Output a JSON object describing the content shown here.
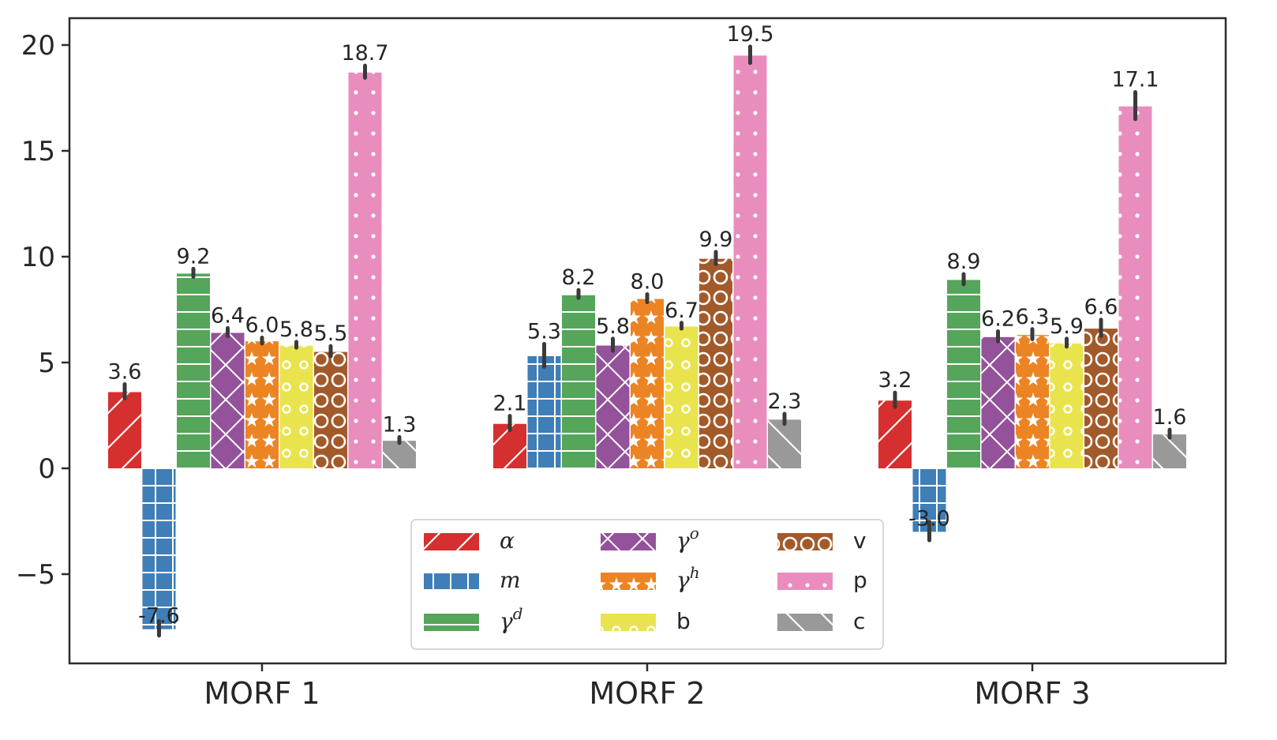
{
  "chart_data": {
    "type": "bar",
    "categories": [
      "MORF 1",
      "MORF 2",
      "MORF 3"
    ],
    "ylim": [
      -9.2,
      21.3
    ],
    "yticks": [
      -5,
      0,
      5,
      10,
      15,
      20
    ],
    "ytick_labels": [
      "−5",
      "0",
      "5",
      "10",
      "15",
      "20"
    ],
    "grid": false,
    "legend_position": "lower-center",
    "series": [
      {
        "name": "α",
        "super": "",
        "italic": true,
        "color": "#d62f2f",
        "hatch": "slash",
        "values": [
          3.6,
          2.1,
          3.2
        ],
        "labels": [
          "3.6",
          "2.1",
          "3.2"
        ],
        "errors": [
          0.3,
          0.3,
          0.3
        ]
      },
      {
        "name": "m",
        "super": "",
        "italic": true,
        "color": "#3f7eb6",
        "hatch": "grid",
        "values": [
          -7.6,
          5.3,
          -3.0
        ],
        "labels": [
          "-7.6",
          "5.3",
          "-3.0"
        ],
        "errors": [
          0.3,
          0.5,
          0.4
        ]
      },
      {
        "name": "γ",
        "super": "d",
        "italic": true,
        "color": "#55a55a",
        "hatch": "hlines",
        "values": [
          9.2,
          8.2,
          8.9
        ],
        "labels": [
          "9.2",
          "8.2",
          "8.9"
        ],
        "errors": [
          0.15,
          0.15,
          0.2
        ]
      },
      {
        "name": "γ",
        "super": "o",
        "italic": true,
        "color": "#94529b",
        "hatch": "cross",
        "values": [
          6.4,
          5.8,
          6.2
        ],
        "labels": [
          "6.4",
          "5.8",
          "6.2"
        ],
        "errors": [
          0.15,
          0.25,
          0.2
        ]
      },
      {
        "name": "γ",
        "super": "h",
        "italic": true,
        "color": "#ec8423",
        "hatch": "stars",
        "values": [
          6.0,
          8.0,
          6.3
        ],
        "labels": [
          "6.0",
          "8.0",
          "6.3"
        ],
        "errors": [
          0.1,
          0.15,
          0.2
        ]
      },
      {
        "name": "b",
        "super": "",
        "italic": false,
        "color": "#e9e44d",
        "hatch": "smallrings",
        "values": [
          5.8,
          6.7,
          5.9
        ],
        "labels": [
          "5.8",
          "6.7",
          "5.9"
        ],
        "errors": [
          0.1,
          0.1,
          0.15
        ]
      },
      {
        "name": "v",
        "super": "",
        "italic": false,
        "color": "#a35a2b",
        "hatch": "rings",
        "values": [
          5.5,
          9.9,
          6.6
        ],
        "labels": [
          "5.5",
          "9.9",
          "6.6"
        ],
        "errors": [
          0.2,
          0.25,
          0.35
        ]
      },
      {
        "name": "p",
        "super": "",
        "italic": false,
        "color": "#e88dbe",
        "hatch": "dots",
        "values": [
          18.7,
          19.5,
          17.1
        ],
        "labels": [
          "18.7",
          "19.5",
          "17.1"
        ],
        "errors": [
          0.25,
          0.35,
          0.6
        ]
      },
      {
        "name": "c",
        "super": "",
        "italic": false,
        "color": "#999999",
        "hatch": "backslash",
        "values": [
          1.3,
          2.3,
          1.6
        ],
        "labels": [
          "1.3",
          "2.3",
          "1.6"
        ],
        "errors": [
          0.1,
          0.2,
          0.15
        ]
      }
    ]
  }
}
